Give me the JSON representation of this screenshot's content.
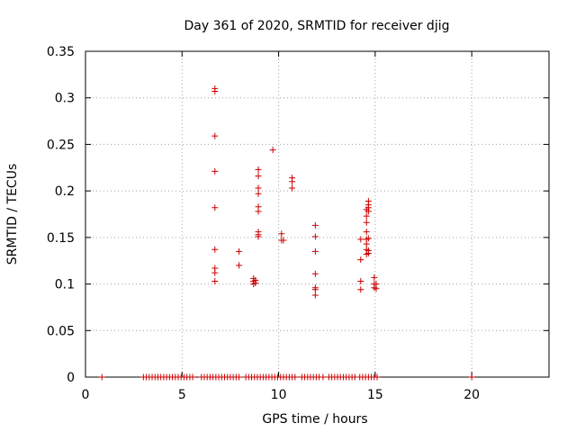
{
  "chart_data": {
    "type": "scatter",
    "title": "Day 361 of 2020, SRMTID for receiver djig",
    "xlabel": "GPS time / hours",
    "ylabel": "SRMTID / TECUs",
    "xlim": [
      0,
      24
    ],
    "ylim": [
      0,
      0.35
    ],
    "xticks": [
      0,
      5,
      10,
      15,
      20
    ],
    "xtick_labels": [
      "0",
      "5",
      "10",
      "15",
      "20"
    ],
    "yticks": [
      0,
      0.05,
      0.1,
      0.15,
      0.2,
      0.25,
      0.3,
      0.35
    ],
    "ytick_labels": [
      "0",
      "0.05",
      "0.1",
      "0.15",
      "0.2",
      "0.25",
      "0.3",
      "0.35"
    ],
    "grid": true,
    "marker": "+",
    "color": "#cc0000",
    "series": [
      {
        "points": [
          [
            0.85,
            0.0
          ],
          [
            3.0,
            0.0
          ],
          [
            3.15,
            0.0
          ],
          [
            3.3,
            0.0
          ],
          [
            3.45,
            0.0
          ],
          [
            3.6,
            0.0
          ],
          [
            3.75,
            0.0
          ],
          [
            3.9,
            0.0
          ],
          [
            4.05,
            0.0
          ],
          [
            4.2,
            0.0
          ],
          [
            4.35,
            0.0
          ],
          [
            4.5,
            0.0
          ],
          [
            4.65,
            0.0
          ],
          [
            4.8,
            0.0
          ],
          [
            4.95,
            0.0
          ],
          [
            5.1,
            0.0
          ],
          [
            5.25,
            0.0
          ],
          [
            5.4,
            0.0
          ],
          [
            5.55,
            0.0
          ],
          [
            6.0,
            0.0
          ],
          [
            6.15,
            0.0
          ],
          [
            6.3,
            0.0
          ],
          [
            6.45,
            0.0
          ],
          [
            6.6,
            0.0
          ],
          [
            6.75,
            0.0
          ],
          [
            6.9,
            0.0
          ],
          [
            7.05,
            0.0
          ],
          [
            7.2,
            0.0
          ],
          [
            7.35,
            0.0
          ],
          [
            7.5,
            0.0
          ],
          [
            7.65,
            0.0
          ],
          [
            7.8,
            0.0
          ],
          [
            7.95,
            0.0
          ],
          [
            8.3,
            0.0
          ],
          [
            8.45,
            0.0
          ],
          [
            8.6,
            0.0
          ],
          [
            8.75,
            0.0
          ],
          [
            8.9,
            0.0
          ],
          [
            9.05,
            0.0
          ],
          [
            9.2,
            0.0
          ],
          [
            9.35,
            0.0
          ],
          [
            9.5,
            0.0
          ],
          [
            9.65,
            0.0
          ],
          [
            9.8,
            0.0
          ],
          [
            9.95,
            0.0
          ],
          [
            10.1,
            0.0
          ],
          [
            10.25,
            0.0
          ],
          [
            10.4,
            0.0
          ],
          [
            10.55,
            0.0
          ],
          [
            10.7,
            0.0
          ],
          [
            10.85,
            0.0
          ],
          [
            11.2,
            0.0
          ],
          [
            11.35,
            0.0
          ],
          [
            11.5,
            0.0
          ],
          [
            11.65,
            0.0
          ],
          [
            11.8,
            0.0
          ],
          [
            11.95,
            0.0
          ],
          [
            12.1,
            0.0
          ],
          [
            12.3,
            0.0
          ],
          [
            12.6,
            0.0
          ],
          [
            12.75,
            0.0
          ],
          [
            12.9,
            0.0
          ],
          [
            13.05,
            0.0
          ],
          [
            13.2,
            0.0
          ],
          [
            13.35,
            0.0
          ],
          [
            13.5,
            0.0
          ],
          [
            13.65,
            0.0
          ],
          [
            13.8,
            0.0
          ],
          [
            13.95,
            0.0
          ],
          [
            14.2,
            0.0
          ],
          [
            14.35,
            0.0
          ],
          [
            14.5,
            0.0
          ],
          [
            14.65,
            0.0
          ],
          [
            14.8,
            0.0
          ],
          [
            14.95,
            0.0
          ],
          [
            15.1,
            0.0
          ],
          [
            20.0,
            0.0
          ],
          [
            6.7,
            0.31
          ],
          [
            6.7,
            0.307
          ],
          [
            6.7,
            0.259
          ],
          [
            6.7,
            0.221
          ],
          [
            6.7,
            0.182
          ],
          [
            6.7,
            0.137
          ],
          [
            6.7,
            0.117
          ],
          [
            6.7,
            0.112
          ],
          [
            6.7,
            0.103
          ],
          [
            7.95,
            0.135
          ],
          [
            7.95,
            0.12
          ],
          [
            8.7,
            0.106
          ],
          [
            8.7,
            0.103
          ],
          [
            8.7,
            0.1
          ],
          [
            8.8,
            0.104
          ],
          [
            8.8,
            0.101
          ],
          [
            8.95,
            0.223
          ],
          [
            8.95,
            0.216
          ],
          [
            8.95,
            0.203
          ],
          [
            8.95,
            0.197
          ],
          [
            8.95,
            0.183
          ],
          [
            8.95,
            0.178
          ],
          [
            8.95,
            0.156
          ],
          [
            8.95,
            0.153
          ],
          [
            8.95,
            0.151
          ],
          [
            9.7,
            0.244
          ],
          [
            10.15,
            0.154
          ],
          [
            10.15,
            0.147
          ],
          [
            10.25,
            0.147
          ],
          [
            10.7,
            0.214
          ],
          [
            10.7,
            0.21
          ],
          [
            10.7,
            0.203
          ],
          [
            11.9,
            0.163
          ],
          [
            11.9,
            0.151
          ],
          [
            11.9,
            0.135
          ],
          [
            11.9,
            0.111
          ],
          [
            11.9,
            0.096
          ],
          [
            11.9,
            0.094
          ],
          [
            11.9,
            0.088
          ],
          [
            14.25,
            0.148
          ],
          [
            14.25,
            0.126
          ],
          [
            14.25,
            0.103
          ],
          [
            14.25,
            0.094
          ],
          [
            14.55,
            0.18
          ],
          [
            14.55,
            0.173
          ],
          [
            14.55,
            0.166
          ],
          [
            14.55,
            0.156
          ],
          [
            14.55,
            0.148
          ],
          [
            14.55,
            0.143
          ],
          [
            14.55,
            0.137
          ],
          [
            14.55,
            0.132
          ],
          [
            14.65,
            0.189
          ],
          [
            14.65,
            0.185
          ],
          [
            14.65,
            0.182
          ],
          [
            14.65,
            0.178
          ],
          [
            14.65,
            0.149
          ],
          [
            14.65,
            0.136
          ],
          [
            14.65,
            0.133
          ],
          [
            14.95,
            0.107
          ],
          [
            14.95,
            0.1
          ],
          [
            14.95,
            0.096
          ],
          [
            15.05,
            0.1
          ],
          [
            15.05,
            0.095
          ]
        ]
      }
    ]
  }
}
